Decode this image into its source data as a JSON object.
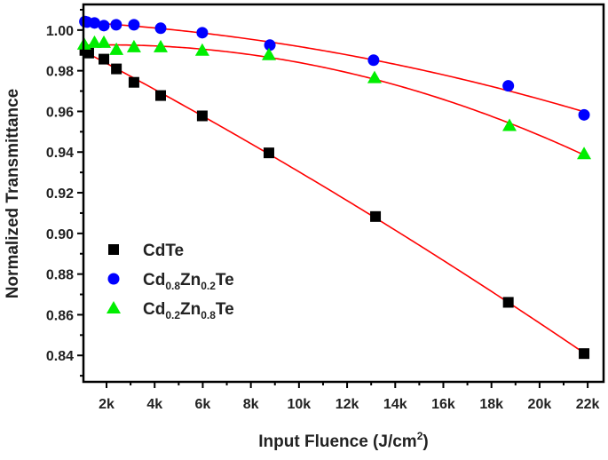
{
  "chart_data": {
    "type": "scatter",
    "xlabel": "Input Fluence (J/cm",
    "xlabel_sup": "2",
    "xlabel_end": ")",
    "ylabel": "Normalized Transmittance",
    "xlim": [
      1040,
      22660
    ],
    "ylim": [
      0.827,
      1.0126
    ],
    "xticks": [
      2000,
      4000,
      6000,
      8000,
      10000,
      12000,
      14000,
      16000,
      18000,
      20000,
      22000
    ],
    "xtick_labels": [
      "2k",
      "4k",
      "6k",
      "8k",
      "10k",
      "12k",
      "14k",
      "16k",
      "18k",
      "20k",
      "22k"
    ],
    "yticks": [
      0.84,
      0.86,
      0.88,
      0.9,
      0.92,
      0.94,
      0.96,
      0.98,
      1.0
    ],
    "ytick_labels": [
      "0.84",
      "0.86",
      "0.88",
      "0.90",
      "0.92",
      "0.94",
      "0.96",
      "0.98",
      "1.00"
    ],
    "grid": false,
    "legend_placement": "bottom-left",
    "fit_color": "#ff0000",
    "series": [
      {
        "name": "CdTe",
        "name_parts": [
          "CdTe"
        ],
        "marker": "square",
        "color": "#000000",
        "x": [
          1100,
          1260,
          1890,
          2410,
          3140,
          4250,
          5980,
          8750,
          13180,
          18700,
          21850
        ],
        "y": [
          0.99,
          0.9887,
          0.9857,
          0.9809,
          0.9743,
          0.9678,
          0.9578,
          0.9396,
          0.9083,
          0.8661,
          0.8409
        ]
      },
      {
        "name": "Cd0.8Zn0.2Te",
        "name_parts": [
          "Cd",
          "0.8",
          "Zn",
          "0.2",
          "Te"
        ],
        "marker": "circle",
        "color": "#0000ff",
        "x": [
          1100,
          1190,
          1500,
          1890,
          2400,
          3140,
          4250,
          5980,
          8790,
          13100,
          18700,
          21850
        ],
        "y": [
          1.0042,
          1.0039,
          1.0035,
          1.0022,
          1.0026,
          1.0026,
          1.0009,
          0.9987,
          0.9926,
          0.9852,
          0.9726,
          0.9583
        ]
      },
      {
        "name": "Cd0.2Zn0.8Te",
        "name_parts": [
          "Cd",
          "0.2",
          "Zn",
          "0.8",
          "Te"
        ],
        "marker": "triangle",
        "color": "#00ee00",
        "x": [
          1070,
          1500,
          1890,
          2410,
          3140,
          4250,
          5980,
          8750,
          13140,
          18750,
          21850
        ],
        "y": [
          0.993,
          0.9939,
          0.9939,
          0.9904,
          0.9917,
          0.9917,
          0.99,
          0.9878,
          0.9765,
          0.953,
          0.9391
        ]
      }
    ]
  }
}
